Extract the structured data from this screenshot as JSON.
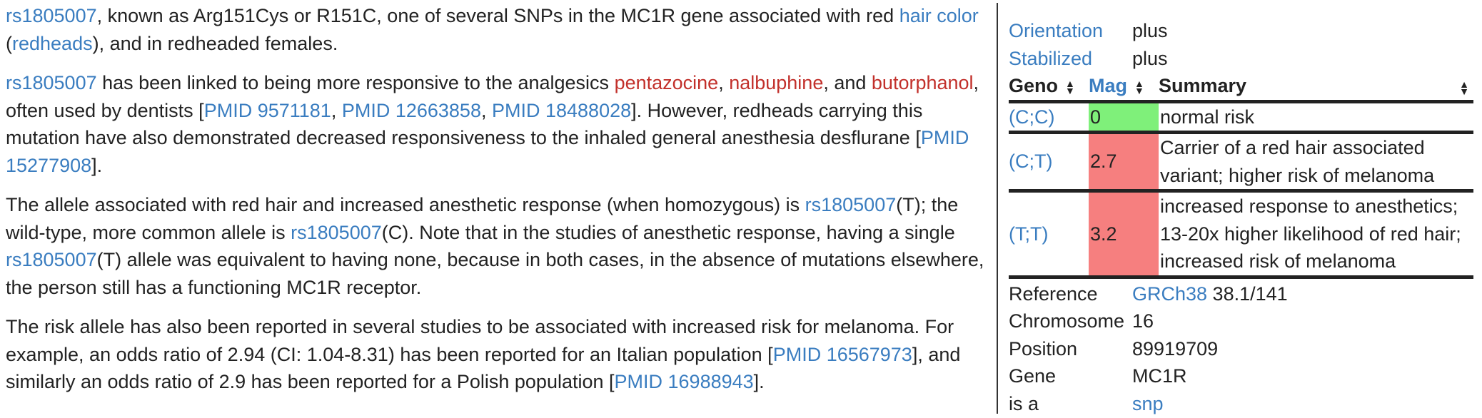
{
  "article": {
    "p1": {
      "rs_link": "rs1805007",
      "t1": ", known as Arg151Cys or R151C, one of several SNPs in the MC1R gene associated with red ",
      "hair_link": "hair color",
      "t2": " (",
      "redheads_link": "redheads",
      "t3": "), and in redheaded females."
    },
    "p2": {
      "rs_link": "rs1805007",
      "t1": " has been linked to being more responsive to the analgesics ",
      "drug1": "pentazocine",
      "sep1": ", ",
      "drug2": "nalbuphine",
      "sep2": ", and ",
      "drug3": "butorphanol",
      "t2": ", often used by dentists [",
      "pmid1": "PMID 9571181",
      "sep3": ", ",
      "pmid2": "PMID 12663858",
      "sep4": ", ",
      "pmid3": "PMID 18488028",
      "t3": "]. However, redheads carrying this mutation have also demonstrated decreased responsiveness to the inhaled general anesthesia desflurane [",
      "pmid4": "PMID 15277908",
      "t4": "]."
    },
    "p3": {
      "t1": "The allele associated with red hair and increased anesthetic response (when homozygous) is ",
      "rs_link1": "rs1805007",
      "t2": "(T); the wild-type, more common allele is ",
      "rs_link2": "rs1805007",
      "t3": "(C). Note that in the studies of anesthetic response, having a single ",
      "rs_link3": "rs1805007",
      "t4": "(T) allele was equivalent to having none, because in both cases, in the absence of mutations elsewhere, the person still has a functioning MC1R receptor."
    },
    "p4": {
      "t1": "The risk allele has also been reported in several studies to be associated with increased risk for melanoma. For example, an odds ratio of 2.94 (CI: 1.04-8.31) has been reported for an Italian population [",
      "pmid1": "PMID 16567973",
      "t2": "], and similarly an odds ratio of 2.9 has been reported for a Polish population [",
      "pmid2": "PMID 16988943",
      "t3": "]."
    }
  },
  "infobox": {
    "orientation": {
      "label": "Orientation",
      "value": "plus"
    },
    "stabilized": {
      "label": "Stabilized",
      "value": "plus"
    },
    "table": {
      "headers": {
        "geno": "Geno",
        "mag": "Mag",
        "summary": "Summary"
      },
      "rows": [
        {
          "geno": "(C;C)",
          "mag": "0",
          "summary": "normal risk",
          "color": "#7ff07a"
        },
        {
          "geno": "(C;T)",
          "mag": "2.7",
          "summary": "Carrier of a red hair associated variant; higher risk of melanoma",
          "color": "#f67f7f"
        },
        {
          "geno": "(T;T)",
          "mag": "3.2",
          "summary": "increased response to anesthetics; 13-20x higher likelihood of red hair; increased risk of melanoma",
          "color": "#f67f7f"
        }
      ]
    },
    "reference": {
      "label": "Reference",
      "link": "GRCh38",
      "value": " 38.1/141"
    },
    "chromosome": {
      "label": "Chromosome",
      "value": "16"
    },
    "position": {
      "label": "Position",
      "value": "89919709"
    },
    "gene": {
      "label": "Gene",
      "value": "MC1R"
    },
    "isa": {
      "label": "is a",
      "link": "snp"
    }
  },
  "icons": {
    "sort": "sort-arrows-icon"
  },
  "colors": {
    "link": "#3a7dc0",
    "redlink": "#c2302b",
    "green": "#7ff07a",
    "pink": "#f67f7f"
  }
}
